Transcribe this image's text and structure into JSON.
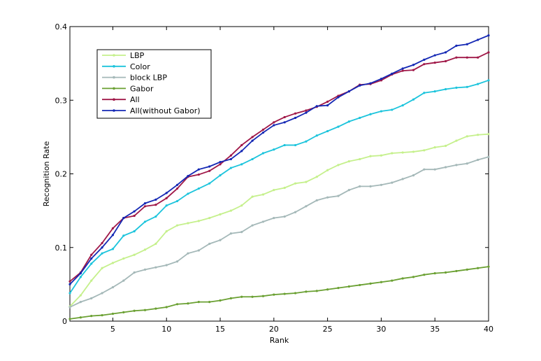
{
  "chart_data": {
    "type": "line",
    "xlabel": "Rank",
    "ylabel": "Recognition Rate",
    "xlim": [
      1,
      40
    ],
    "ylim": [
      0,
      0.4
    ],
    "xticks": [
      5,
      10,
      15,
      20,
      25,
      30,
      35,
      40
    ],
    "yticks": [
      0,
      0.1,
      0.2,
      0.3,
      0.4
    ],
    "ytick_labels": [
      "0",
      "0.1",
      "0.2",
      "0.3",
      "0.4"
    ],
    "grid": false,
    "legend_position": "top-left",
    "x": [
      1,
      2,
      3,
      4,
      5,
      6,
      7,
      8,
      9,
      10,
      11,
      12,
      13,
      14,
      15,
      16,
      17,
      18,
      19,
      20,
      21,
      22,
      23,
      24,
      25,
      26,
      27,
      28,
      29,
      30,
      31,
      32,
      33,
      34,
      35,
      36,
      37,
      38,
      39,
      40
    ],
    "series": [
      {
        "name": "LBP",
        "color": "#c5f08c",
        "values": [
          0.02,
          0.035,
          0.055,
          0.072,
          0.079,
          0.085,
          0.09,
          0.097,
          0.105,
          0.122,
          0.13,
          0.133,
          0.136,
          0.14,
          0.145,
          0.15,
          0.157,
          0.169,
          0.172,
          0.178,
          0.181,
          0.187,
          0.189,
          0.196,
          0.205,
          0.212,
          0.217,
          0.22,
          0.224,
          0.225,
          0.228,
          0.229,
          0.23,
          0.232,
          0.236,
          0.238,
          0.245,
          0.251,
          0.253,
          0.254
        ]
      },
      {
        "name": "Color",
        "color": "#1cc4dc",
        "values": [
          0.038,
          0.06,
          0.078,
          0.092,
          0.098,
          0.116,
          0.122,
          0.135,
          0.142,
          0.157,
          0.163,
          0.173,
          0.18,
          0.187,
          0.198,
          0.208,
          0.213,
          0.22,
          0.228,
          0.233,
          0.239,
          0.239,
          0.244,
          0.252,
          0.258,
          0.264,
          0.271,
          0.276,
          0.281,
          0.285,
          0.287,
          0.293,
          0.301,
          0.31,
          0.312,
          0.315,
          0.317,
          0.318,
          0.322,
          0.327
        ]
      },
      {
        "name": "block LBP",
        "color": "#a4b8b8",
        "values": [
          0.019,
          0.026,
          0.031,
          0.038,
          0.046,
          0.055,
          0.066,
          0.07,
          0.073,
          0.076,
          0.081,
          0.092,
          0.096,
          0.105,
          0.11,
          0.119,
          0.121,
          0.13,
          0.135,
          0.14,
          0.142,
          0.148,
          0.156,
          0.164,
          0.168,
          0.17,
          0.178,
          0.183,
          0.183,
          0.185,
          0.188,
          0.193,
          0.198,
          0.206,
          0.206,
          0.209,
          0.212,
          0.214,
          0.219,
          0.223
        ]
      },
      {
        "name": "Gabor",
        "color": "#6aa032",
        "values": [
          0.003,
          0.005,
          0.007,
          0.008,
          0.01,
          0.012,
          0.014,
          0.015,
          0.017,
          0.019,
          0.023,
          0.024,
          0.026,
          0.026,
          0.028,
          0.031,
          0.033,
          0.033,
          0.034,
          0.036,
          0.037,
          0.038,
          0.04,
          0.041,
          0.043,
          0.045,
          0.047,
          0.049,
          0.051,
          0.053,
          0.055,
          0.058,
          0.06,
          0.063,
          0.065,
          0.066,
          0.068,
          0.07,
          0.072,
          0.074
        ]
      },
      {
        "name": "All",
        "color": "#a01848",
        "values": [
          0.054,
          0.066,
          0.09,
          0.106,
          0.126,
          0.14,
          0.143,
          0.156,
          0.158,
          0.167,
          0.18,
          0.196,
          0.199,
          0.204,
          0.213,
          0.225,
          0.239,
          0.25,
          0.26,
          0.27,
          0.277,
          0.282,
          0.286,
          0.291,
          0.298,
          0.306,
          0.312,
          0.321,
          0.322,
          0.327,
          0.335,
          0.34,
          0.341,
          0.349,
          0.351,
          0.353,
          0.358,
          0.358,
          0.358,
          0.365
        ]
      },
      {
        "name": "All(without Gabor)",
        "color": "#1428b4",
        "values": [
          0.05,
          0.065,
          0.085,
          0.1,
          0.117,
          0.14,
          0.149,
          0.16,
          0.165,
          0.174,
          0.185,
          0.197,
          0.206,
          0.21,
          0.216,
          0.22,
          0.231,
          0.245,
          0.256,
          0.266,
          0.27,
          0.276,
          0.283,
          0.292,
          0.293,
          0.304,
          0.312,
          0.32,
          0.323,
          0.329,
          0.336,
          0.343,
          0.348,
          0.355,
          0.361,
          0.365,
          0.374,
          0.376,
          0.382,
          0.388
        ]
      }
    ]
  }
}
